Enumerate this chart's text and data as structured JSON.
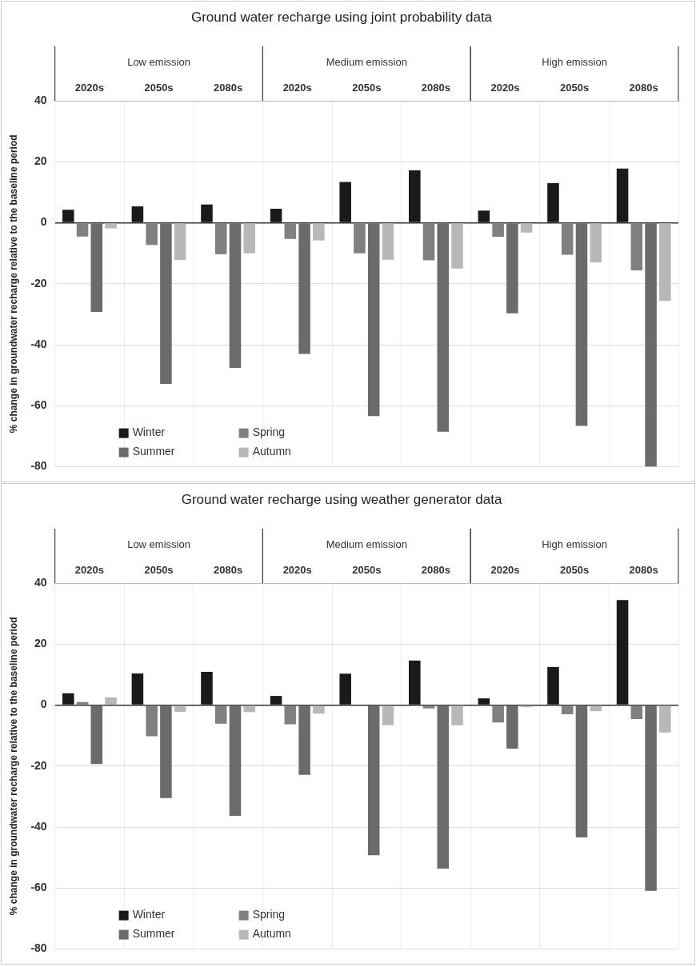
{
  "chart_data": [
    {
      "type": "bar",
      "title": "Ground water recharge using joint probability data",
      "ylabel": "% change in groundwater recharge relative to the baseline period",
      "categories": [
        "2020s",
        "2050s",
        "2080s",
        "2020s",
        "2050s",
        "2080s",
        "2020s",
        "2050s",
        "2080s"
      ],
      "annotations": [
        "Low emission",
        "Medium emission",
        "High emission"
      ],
      "series": [
        {
          "name": "Winter",
          "color": "#1a1a1a",
          "values": [
            4.3,
            5.4,
            6,
            4.6,
            13.4,
            17.2,
            4,
            13,
            17.8
          ]
        },
        {
          "name": "Spring",
          "color": "#808080",
          "values": [
            -4.5,
            -7.3,
            -10.3,
            -5.3,
            -10,
            -12.3,
            -4.6,
            -10.5,
            -15.6
          ]
        },
        {
          "name": "Summer",
          "color": "#6b6b6b",
          "values": [
            -29.2,
            -52.8,
            -47.6,
            -43,
            -63.4,
            -68.5,
            -29.7,
            -66.6,
            -80
          ]
        },
        {
          "name": "Autumn",
          "color": "#b8b8b8",
          "values": [
            -1.8,
            -12.2,
            -10,
            -5.8,
            -12.1,
            -15,
            -3.2,
            -13,
            -25.6
          ]
        }
      ],
      "ylim": [
        -80,
        40
      ],
      "yticks": [
        -80,
        -60,
        -40,
        -20,
        0,
        20,
        40
      ],
      "grid": true,
      "legend": "bottom left"
    },
    {
      "type": "bar",
      "title": "Ground water recharge using weather generator data",
      "ylabel": "% change in groundwater recharge relative to the baseline period",
      "categories": [
        "2020s",
        "2050s",
        "2080s",
        "2020s",
        "2050s",
        "2080s",
        "2020s",
        "2050s",
        "2080s"
      ],
      "annotations": [
        "Low emission",
        "Medium emission",
        "High emission"
      ],
      "series": [
        {
          "name": "Winter",
          "color": "#1a1a1a",
          "values": [
            3.9,
            10.4,
            10.9,
            3,
            10.3,
            14.6,
            2.2,
            12.5,
            34.4
          ]
        },
        {
          "name": "Spring",
          "color": "#808080",
          "values": [
            1,
            -10.2,
            -6.1,
            -6.3,
            null,
            -1.1,
            -5.7,
            -3,
            -4.6
          ]
        },
        {
          "name": "Summer",
          "color": "#6b6b6b",
          "values": [
            -19.3,
            -30.5,
            -36.3,
            -22.9,
            -49.2,
            -53.6,
            -14.3,
            -43.4,
            -60.9
          ]
        },
        {
          "name": "Autumn",
          "color": "#b8b8b8",
          "values": [
            2.5,
            -2.2,
            -2.3,
            -2.8,
            -6.6,
            -6.6,
            -0.7,
            -2,
            -9
          ]
        }
      ],
      "ylim": [
        -80,
        40
      ],
      "yticks": [
        -80,
        -60,
        -40,
        -20,
        0,
        20,
        40
      ],
      "grid": true,
      "legend": "bottom left"
    }
  ]
}
